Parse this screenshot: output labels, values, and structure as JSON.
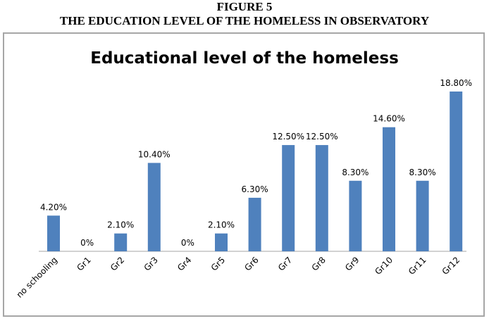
{
  "figure": {
    "number": "FIGURE 5",
    "caption": "THE EDUCATION LEVEL OF THE HOMELESS IN OBSERVATORY"
  },
  "chart_data": {
    "type": "bar",
    "title": "Educational level of the homeless",
    "categories": [
      "no schooling",
      "Gr1",
      "Gr2",
      "Gr3",
      "Gr4",
      "Gr5",
      "Gr6",
      "Gr7",
      "Gr8",
      "Gr9",
      "Gr10",
      "Gr11",
      "Gr12"
    ],
    "values": [
      4.2,
      0,
      2.1,
      10.4,
      0,
      2.1,
      6.3,
      12.5,
      12.5,
      8.3,
      14.6,
      8.3,
      18.8
    ],
    "data_labels": [
      "4.20%",
      "0%",
      "2.10%",
      "10.40%",
      "0%",
      "2.10%",
      "6.30%",
      "12.50%",
      "12.50%",
      "8.30%",
      "14.60%",
      "8.30%",
      "18.80%"
    ],
    "xlabel": "",
    "ylabel": "",
    "ylim": [
      0,
      18.8
    ],
    "grid": false,
    "y_axis_shown": false,
    "bar_color": "#4f81bd"
  }
}
